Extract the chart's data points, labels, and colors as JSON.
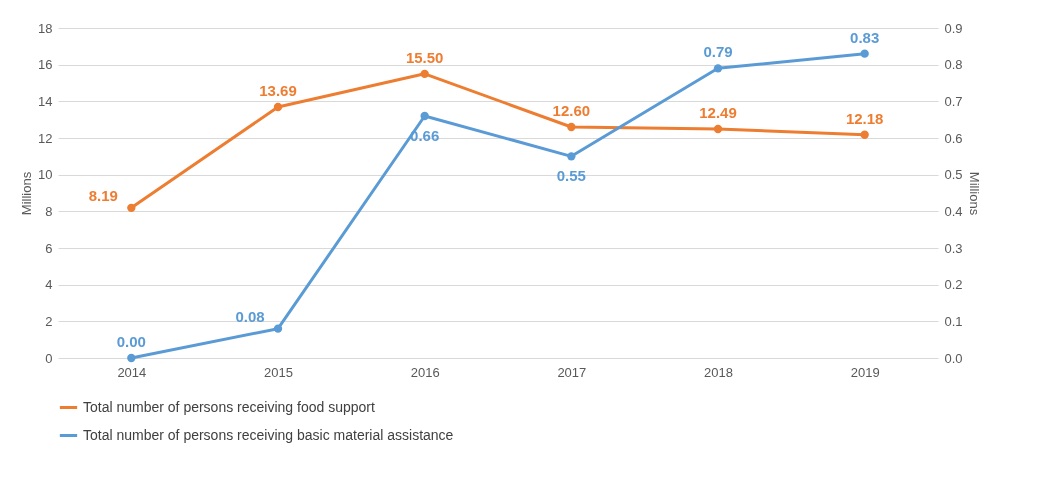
{
  "chart_data": {
    "type": "line",
    "categories": [
      "2014",
      "2015",
      "2016",
      "2017",
      "2018",
      "2019"
    ],
    "series": [
      {
        "name": "Total number of persons receiving food support",
        "color": "#ed7d31",
        "values": [
          8.19,
          13.69,
          15.5,
          12.6,
          12.49,
          12.18
        ],
        "value_labels": [
          "8.19",
          "13.69",
          "15.50",
          "12.60",
          "12.49",
          "12.18"
        ]
      },
      {
        "name": "Total number of persons receiving basic material assistance",
        "color": "#5b9bd5",
        "axis": "y2",
        "values": [
          0,
          0.08,
          0.66,
          0.55,
          0.79,
          0.83
        ],
        "value_labels": [
          "0.00",
          "0.08",
          "0.66",
          "0.55",
          "0.79",
          "0.83"
        ]
      }
    ],
    "ylabel": "Millions",
    "y2label": "Millions",
    "ylim": [
      0,
      18
    ],
    "yticks": [
      0,
      2,
      4,
      6,
      8,
      10,
      12,
      14,
      16,
      18
    ],
    "y2lim": [
      0,
      0.9
    ],
    "y2ticks": [
      {
        "value": 0,
        "label": "0.0"
      },
      0.1,
      0.2,
      0.3,
      0.4,
      0.5,
      0.6,
      0.7,
      0.8,
      0.9
    ],
    "grid": "y",
    "legend": "bottom",
    "marker": "circle"
  }
}
